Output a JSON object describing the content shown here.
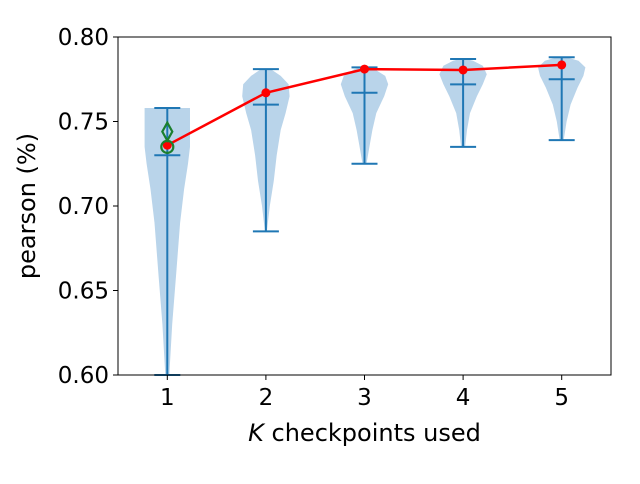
{
  "chart_data": {
    "type": "violin",
    "title": "",
    "xlabel_italic": "K",
    "xlabel_rest": " checkpoints used",
    "ylabel": "pearson (%)",
    "categories": [
      "1",
      "2",
      "3",
      "4",
      "5"
    ],
    "x": [
      1,
      2,
      3,
      4,
      5
    ],
    "xlim": [
      0.5,
      5.5
    ],
    "ylim": [
      0.6,
      0.8
    ],
    "yticks": [
      0.6,
      0.65,
      0.7,
      0.75,
      0.8
    ],
    "ytick_labels": [
      "0.60",
      "0.65",
      "0.70",
      "0.75",
      "0.80"
    ],
    "grid": false,
    "colors": {
      "violin_fill": "#b9d4ea",
      "violin_lines": "#1f77b4",
      "mean_line": "#ff0000",
      "markers_green": "#1b7f2e"
    },
    "violins": [
      {
        "x": 1,
        "min": 0.6,
        "max": 0.758,
        "median": 0.73,
        "profile": [
          [
            0.6,
            0.02
          ],
          [
            0.63,
            0.05
          ],
          [
            0.66,
            0.09
          ],
          [
            0.69,
            0.13
          ],
          [
            0.71,
            0.17
          ],
          [
            0.725,
            0.21
          ],
          [
            0.735,
            0.23
          ],
          [
            0.745,
            0.23
          ],
          [
            0.752,
            0.23
          ],
          [
            0.758,
            0.23
          ]
        ]
      },
      {
        "x": 2,
        "min": 0.685,
        "max": 0.781,
        "median": 0.76,
        "profile": [
          [
            0.685,
            0.01
          ],
          [
            0.7,
            0.04
          ],
          [
            0.715,
            0.08
          ],
          [
            0.73,
            0.11
          ],
          [
            0.745,
            0.15
          ],
          [
            0.755,
            0.2
          ],
          [
            0.765,
            0.24
          ],
          [
            0.772,
            0.23
          ],
          [
            0.777,
            0.15
          ],
          [
            0.781,
            0.05
          ]
        ]
      },
      {
        "x": 3,
        "min": 0.725,
        "max": 0.782,
        "median": 0.767,
        "profile": [
          [
            0.725,
            0.02
          ],
          [
            0.735,
            0.05
          ],
          [
            0.745,
            0.08
          ],
          [
            0.755,
            0.12
          ],
          [
            0.765,
            0.2
          ],
          [
            0.772,
            0.24
          ],
          [
            0.777,
            0.21
          ],
          [
            0.781,
            0.1
          ],
          [
            0.782,
            0.04
          ]
        ]
      },
      {
        "x": 4,
        "min": 0.735,
        "max": 0.787,
        "median": 0.772,
        "profile": [
          [
            0.735,
            0.02
          ],
          [
            0.745,
            0.04
          ],
          [
            0.755,
            0.07
          ],
          [
            0.765,
            0.14
          ],
          [
            0.772,
            0.2
          ],
          [
            0.778,
            0.24
          ],
          [
            0.783,
            0.2
          ],
          [
            0.786,
            0.1
          ],
          [
            0.787,
            0.03
          ]
        ]
      },
      {
        "x": 5,
        "min": 0.739,
        "max": 0.788,
        "median": 0.775,
        "profile": [
          [
            0.739,
            0.02
          ],
          [
            0.75,
            0.05
          ],
          [
            0.76,
            0.09
          ],
          [
            0.77,
            0.16
          ],
          [
            0.777,
            0.22
          ],
          [
            0.782,
            0.24
          ],
          [
            0.786,
            0.17
          ],
          [
            0.788,
            0.05
          ]
        ]
      }
    ],
    "mean_series": {
      "x": [
        1,
        2,
        3,
        4,
        5
      ],
      "y": [
        0.736,
        0.767,
        0.781,
        0.7805,
        0.7835
      ]
    },
    "green_markers": [
      {
        "x": 1,
        "y": 0.744,
        "shape": "diamond"
      },
      {
        "x": 1,
        "y": 0.735,
        "shape": "circle"
      }
    ]
  }
}
